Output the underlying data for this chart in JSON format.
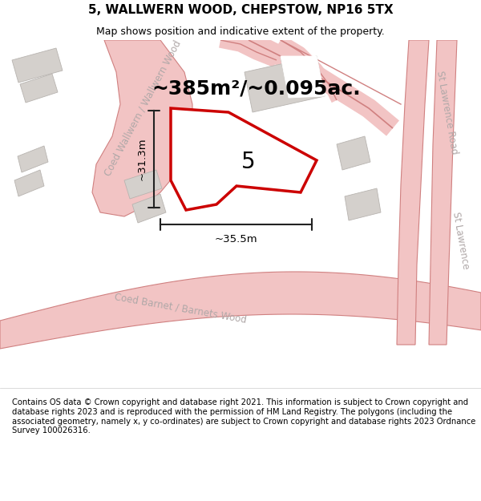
{
  "title": "5, WALLWERN WOOD, CHEPSTOW, NP16 5TX",
  "subtitle": "Map shows position and indicative extent of the property.",
  "area_label": "~385m²/~0.095ac.",
  "plot_number": "5",
  "dim_vertical": "~31.3m",
  "dim_horizontal": "~35.5m",
  "footer": "Contains OS data © Crown copyright and database right 2021. This information is subject to Crown copyright and database rights 2023 and is reproduced with the permission of HM Land Registry. The polygons (including the associated geometry, namely x, y co-ordinates) are subject to Crown copyright and database rights 2023 Ordnance Survey 100026316.",
  "map_bg": "#f7f4f4",
  "road_fill": "#f2c4c4",
  "road_edge": "#d08080",
  "building_color": "#d4d0cc",
  "building_edge": "#b8b4b0",
  "plot_outline_color": "#cc0000",
  "plot_fill_color": "#ffffff",
  "dim_color": "#222222",
  "street_label_color": "#b0a8a8",
  "title_fontsize": 11,
  "subtitle_fontsize": 9,
  "area_label_fontsize": 18,
  "plot_number_fontsize": 20,
  "dim_fontsize": 9.5,
  "footer_fontsize": 7.2,
  "street_label_fontsize": 8.5
}
